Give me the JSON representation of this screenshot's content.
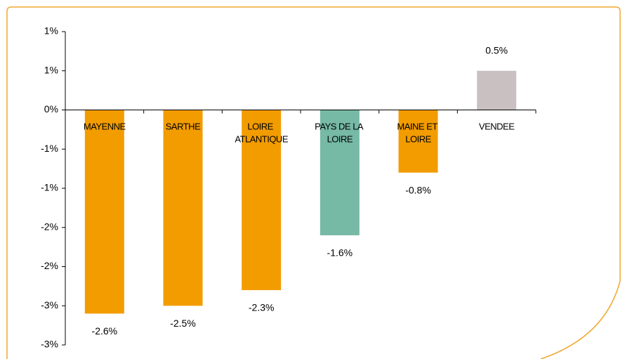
{
  "chart_data": {
    "type": "bar",
    "categories": [
      "MAYENNE",
      "SARTHE",
      "LOIRE ATLANTIQUE",
      "PAYS DE LA LOIRE",
      "MAINE ET LOIRE",
      "VENDEE"
    ],
    "values": [
      -2.6,
      -2.5,
      -2.3,
      -1.6,
      -0.8,
      0.5
    ],
    "value_labels": [
      "-2.6%",
      "-2.5%",
      "-2.3%",
      "-1.6%",
      "-0.8%",
      "0.5%"
    ],
    "colors": [
      "#f39c00",
      "#f39c00",
      "#f39c00",
      "#76b9a5",
      "#f39c00",
      "#c9c1c1"
    ],
    "ylim": [
      -3,
      1
    ],
    "yticks": [
      {
        "value": 1,
        "label": "1%"
      },
      {
        "value": 0.5,
        "label": "1%"
      },
      {
        "value": 0,
        "label": "0%"
      },
      {
        "value": -0.5,
        "label": "-1%"
      },
      {
        "value": -1,
        "label": "-1%"
      },
      {
        "value": -1.5,
        "label": "-2%"
      },
      {
        "value": -2,
        "label": "-2%"
      },
      {
        "value": -2.5,
        "label": "-3%"
      },
      {
        "value": -3,
        "label": "-3%"
      }
    ],
    "grid": false
  }
}
